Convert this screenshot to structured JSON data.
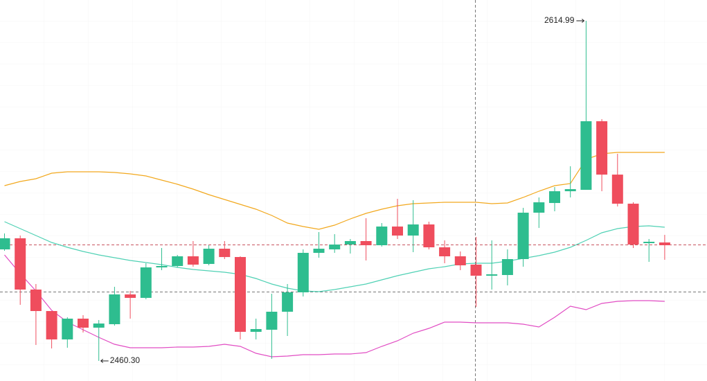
{
  "chart_data": {
    "type": "candlestick",
    "ylim": [
      2451.16,
      2624.44
    ],
    "up_color": "#2ebd8f",
    "down_color": "#ef4d5d",
    "candles": {
      "open": [
        2511.02,
        2516.06,
        2492.75,
        2482.98,
        2470.07,
        2479.52,
        2475.42,
        2477.0,
        2490.54,
        2488.97,
        2502.83,
        2503.46,
        2507.87,
        2504.4,
        2511.33,
        2507.55,
        2473.53,
        2474.48,
        2482.67,
        2491.49,
        2509.44,
        2511.02,
        2513.22,
        2514.8,
        2512.91,
        2521.41,
        2517.32,
        2522.36,
        2511.96,
        2507.87,
        2504.09,
        2499.05,
        2499.36,
        2506.61,
        2527.71,
        2532.12,
        2537.47,
        2538.1,
        2569.3,
        2545.03,
        2531.8,
        2513.85,
        2514.17
      ],
      "high": [
        2518.25,
        2517.32,
        2495.27,
        2482.98,
        2480.15,
        2481.09,
        2478.89,
        2494.01,
        2492.12,
        2504.72,
        2511.65,
        2508.5,
        2514.8,
        2512.91,
        2514.8,
        2507.87,
        2479.52,
        2490.86,
        2495.27,
        2511.02,
        2518.89,
        2517.95,
        2515.74,
        2525.19,
        2522.99,
        2534.01,
        2533.38,
        2523.61,
        2515.11,
        2510.07,
        2516.68,
        2515.11,
        2511.02,
        2529.91,
        2534.64,
        2539.37,
        2548.82,
        2614.99,
        2570.24,
        2554.49,
        2532.43,
        2515.74,
        2517.62
      ],
      "low": [
        2510.39,
        2485.82,
        2467.55,
        2465.97,
        2466.29,
        2473.22,
        2460.3,
        2476.37,
        2479.52,
        2488.34,
        2501.57,
        2502.83,
        2503.14,
        2503.77,
        2506.61,
        2470.07,
        2470.07,
        2461.24,
        2471.64,
        2489.6,
        2507.24,
        2509.44,
        2509.13,
        2505.98,
        2512.28,
        2515.74,
        2509.76,
        2511.02,
        2504.72,
        2501.57,
        2484.87,
        2492.75,
        2494.64,
        2503.14,
        2520.77,
        2528.33,
        2534.64,
        2538.1,
        2537.47,
        2530.54,
        2511.65,
        2505.35,
        2506.29
      ],
      "close": [
        2516.06,
        2492.75,
        2482.98,
        2470.07,
        2479.52,
        2475.42,
        2477.31,
        2490.54,
        2488.97,
        2502.83,
        2503.46,
        2507.87,
        2504.09,
        2511.33,
        2507.55,
        2473.53,
        2474.79,
        2482.67,
        2491.49,
        2509.44,
        2511.33,
        2513.22,
        2514.8,
        2512.91,
        2521.41,
        2517.32,
        2522.36,
        2511.96,
        2507.87,
        2503.77,
        2499.05,
        2499.68,
        2506.61,
        2527.71,
        2532.43,
        2537.47,
        2538.42,
        2569.3,
        2545.03,
        2531.8,
        2513.22,
        2514.48,
        2512.91
      ]
    },
    "lines": [
      {
        "color": "#f2a81d",
        "values": [
          2540.0,
          2541.89,
          2543.15,
          2545.67,
          2546.31,
          2546.31,
          2546.31,
          2545.99,
          2545.36,
          2544.41,
          2542.52,
          2540.63,
          2538.43,
          2535.91,
          2533.7,
          2531.5,
          2529.29,
          2526.46,
          2522.99,
          2521.41,
          2520.16,
          2522.05,
          2524.88,
          2527.4,
          2529.29,
          2530.87,
          2531.8,
          2532.12,
          2532.43,
          2532.43,
          2532.43,
          2531.8,
          2532.12,
          2534.64,
          2537.47,
          2540.0,
          2540.95,
          2551.98,
          2554.49,
          2555.13,
          2555.13,
          2555.13,
          2555.13
        ]
      },
      {
        "color": "#4fd1b4",
        "values": [
          2523.61,
          2520.47,
          2517.32,
          2514.17,
          2511.96,
          2510.07,
          2508.5,
          2507.24,
          2505.98,
          2505.03,
          2504.09,
          2502.83,
          2501.88,
          2501.25,
          2500.62,
          2499.68,
          2497.79,
          2495.27,
          2493.38,
          2492.12,
          2491.8,
          2492.75,
          2494.01,
          2495.27,
          2497.16,
          2499.05,
          2500.62,
          2502.2,
          2503.14,
          2504.4,
          2504.72,
          2504.72,
          2505.66,
          2506.92,
          2508.18,
          2509.76,
          2511.96,
          2515.11,
          2518.58,
          2520.47,
          2521.41,
          2521.73,
          2521.1
        ]
      },
      {
        "color": "#e14cc3",
        "values": [
          2508.5,
          2499.99,
          2492.12,
          2483.29,
          2477.94,
          2474.48,
          2471.01,
          2467.86,
          2466.29,
          2466.29,
          2466.29,
          2466.59,
          2466.59,
          2466.91,
          2467.86,
          2466.91,
          2463.76,
          2462.18,
          2462.5,
          2463.13,
          2463.13,
          2463.44,
          2463.44,
          2464.07,
          2466.91,
          2469.43,
          2472.9,
          2475.1,
          2477.94,
          2477.94,
          2477.62,
          2477.62,
          2477.62,
          2477.0,
          2475.73,
          2480.15,
          2485.18,
          2483.61,
          2486.44,
          2487.39,
          2487.7,
          2487.7,
          2487.39
        ]
      }
    ],
    "max_label": "2614.99",
    "min_label": "2460.30"
  }
}
